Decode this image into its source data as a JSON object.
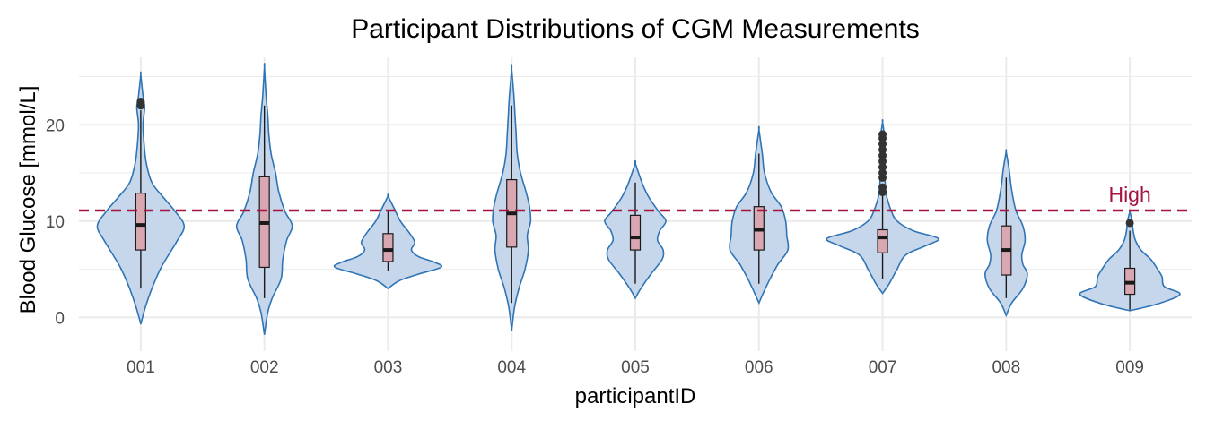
{
  "chart_data": {
    "type": "violin",
    "title": "Participant Distributions of CGM Measurements",
    "xlabel": "participantID",
    "ylabel": "Blood Glucose [mmol/L]",
    "categories": [
      "001",
      "002",
      "003",
      "004",
      "005",
      "006",
      "007",
      "008",
      "009"
    ],
    "ylim": [
      -3.5,
      27
    ],
    "yticks": [
      0,
      10,
      20
    ],
    "grid": true,
    "colors": {
      "violin_fill": "#c6d7ec",
      "violin_stroke": "#2f74b5",
      "box_fill": "#d9a7b2",
      "reference": "#a5143f",
      "grid": "#ebebeb",
      "outlier": "#333333"
    },
    "reference_line": {
      "value": 11.1,
      "label": "High",
      "style": "dashed"
    },
    "distributions": [
      {
        "participant": "001",
        "min_extent": -0.7,
        "max_extent": 25.2,
        "whisker_low": 3.0,
        "q1": 7.0,
        "median": 9.6,
        "q3": 12.9,
        "whisker_high": 21.5,
        "outliers": [
          22.0,
          22.4
        ],
        "density": [
          [
            -0.7,
            0
          ],
          [
            1,
            0.08
          ],
          [
            3,
            0.2
          ],
          [
            5,
            0.35
          ],
          [
            6.5,
            0.5
          ],
          [
            8,
            0.66
          ],
          [
            9.5,
            0.78
          ],
          [
            11,
            0.62
          ],
          [
            12.5,
            0.4
          ],
          [
            14,
            0.2
          ],
          [
            16,
            0.1
          ],
          [
            18,
            0.06
          ],
          [
            20,
            0.04
          ],
          [
            21.8,
            0.07
          ],
          [
            23,
            0.04
          ],
          [
            25.2,
            0
          ]
        ]
      },
      {
        "participant": "002",
        "min_extent": -1.8,
        "max_extent": 26.0,
        "whisker_low": 2.0,
        "q1": 5.2,
        "median": 9.8,
        "q3": 14.6,
        "whisker_high": 22.0,
        "density": [
          [
            -1.8,
            0
          ],
          [
            0.5,
            0.06
          ],
          [
            2,
            0.14
          ],
          [
            4,
            0.3
          ],
          [
            6,
            0.33
          ],
          [
            8,
            0.4
          ],
          [
            9.5,
            0.5
          ],
          [
            11,
            0.37
          ],
          [
            13,
            0.26
          ],
          [
            15,
            0.2
          ],
          [
            17,
            0.12
          ],
          [
            19,
            0.08
          ],
          [
            21,
            0.06
          ],
          [
            23,
            0.03
          ],
          [
            26,
            0
          ]
        ]
      },
      {
        "participant": "003",
        "min_extent": 3.0,
        "max_extent": 12.6,
        "whisker_low": 4.8,
        "q1": 5.8,
        "median": 7.0,
        "q3": 8.7,
        "whisker_high": 11.0,
        "density": [
          [
            3,
            0
          ],
          [
            3.8,
            0.2
          ],
          [
            4.5,
            0.55
          ],
          [
            5.2,
            0.95
          ],
          [
            5.7,
            0.85
          ],
          [
            6.3,
            0.55
          ],
          [
            7,
            0.42
          ],
          [
            7.8,
            0.48
          ],
          [
            8.8,
            0.38
          ],
          [
            10,
            0.22
          ],
          [
            11.2,
            0.12
          ],
          [
            12.6,
            0
          ]
        ]
      },
      {
        "participant": "004",
        "min_extent": -1.4,
        "max_extent": 25.8,
        "whisker_low": 1.5,
        "q1": 7.3,
        "median": 10.8,
        "q3": 14.3,
        "whisker_high": 22.0,
        "density": [
          [
            -1.4,
            0
          ],
          [
            1,
            0.05
          ],
          [
            3,
            0.13
          ],
          [
            5,
            0.24
          ],
          [
            7,
            0.3
          ],
          [
            8.5,
            0.28
          ],
          [
            10,
            0.34
          ],
          [
            11.5,
            0.32
          ],
          [
            13,
            0.26
          ],
          [
            15,
            0.16
          ],
          [
            17,
            0.1
          ],
          [
            19,
            0.08
          ],
          [
            21,
            0.06
          ],
          [
            23,
            0.04
          ],
          [
            25.8,
            0
          ]
        ]
      },
      {
        "participant": "005",
        "min_extent": 2.0,
        "max_extent": 16.0,
        "whisker_low": 3.5,
        "q1": 7.0,
        "median": 8.3,
        "q3": 10.6,
        "whisker_high": 14.0,
        "density": [
          [
            2,
            0
          ],
          [
            3,
            0.1
          ],
          [
            4.5,
            0.28
          ],
          [
            6,
            0.48
          ],
          [
            7,
            0.5
          ],
          [
            8,
            0.4
          ],
          [
            9,
            0.44
          ],
          [
            10,
            0.55
          ],
          [
            11,
            0.42
          ],
          [
            12.5,
            0.24
          ],
          [
            14,
            0.12
          ],
          [
            16,
            0
          ]
        ]
      },
      {
        "participant": "006",
        "min_extent": 1.5,
        "max_extent": 19.5,
        "whisker_low": 3.5,
        "q1": 7.0,
        "median": 9.1,
        "q3": 11.5,
        "whisker_high": 17.0,
        "density": [
          [
            1.5,
            0
          ],
          [
            2.8,
            0.1
          ],
          [
            4,
            0.2
          ],
          [
            5.5,
            0.34
          ],
          [
            7,
            0.52
          ],
          [
            8.5,
            0.5
          ],
          [
            10,
            0.48
          ],
          [
            11.5,
            0.4
          ],
          [
            13,
            0.22
          ],
          [
            15,
            0.1
          ],
          [
            17,
            0.06
          ],
          [
            19.5,
            0
          ]
        ]
      },
      {
        "participant": "007",
        "min_extent": 2.5,
        "max_extent": 20.3,
        "whisker_low": 4.0,
        "q1": 6.7,
        "median": 8.3,
        "q3": 9.1,
        "whisker_high": 12.7,
        "outliers": [
          13.0,
          13.5,
          14.5,
          15.0,
          15.6,
          16.2,
          16.8,
          17.4,
          18.0,
          18.6,
          19.0
        ],
        "density": [
          [
            2.5,
            0
          ],
          [
            3.5,
            0.12
          ],
          [
            5,
            0.26
          ],
          [
            6.5,
            0.42
          ],
          [
            7.5,
            0.8
          ],
          [
            8.2,
            1.0
          ],
          [
            9,
            0.55
          ],
          [
            10,
            0.26
          ],
          [
            11,
            0.16
          ],
          [
            12,
            0.1
          ],
          [
            13,
            0.06
          ],
          [
            15,
            0.04
          ],
          [
            17,
            0.04
          ],
          [
            18.5,
            0.04
          ],
          [
            20.3,
            0
          ]
        ]
      },
      {
        "participant": "008",
        "min_extent": 0.2,
        "max_extent": 17.2,
        "whisker_low": 2.0,
        "q1": 4.4,
        "median": 7.0,
        "q3": 9.5,
        "whisker_high": 14.5,
        "density": [
          [
            0.2,
            0
          ],
          [
            1.5,
            0.1
          ],
          [
            3,
            0.3
          ],
          [
            4.5,
            0.38
          ],
          [
            5.5,
            0.3
          ],
          [
            6.5,
            0.28
          ],
          [
            8,
            0.34
          ],
          [
            9.5,
            0.3
          ],
          [
            11,
            0.18
          ],
          [
            12.5,
            0.12
          ],
          [
            14,
            0.08
          ],
          [
            15.5,
            0.05
          ],
          [
            17.2,
            0
          ]
        ]
      },
      {
        "participant": "009",
        "min_extent": 0.7,
        "max_extent": 11.0,
        "whisker_low": 0.8,
        "q1": 2.4,
        "median": 3.6,
        "q3": 5.1,
        "whisker_high": 9.0,
        "outliers": [
          9.8
        ],
        "density": [
          [
            0.7,
            0
          ],
          [
            1.4,
            0.5
          ],
          [
            2.4,
            0.9
          ],
          [
            3.2,
            0.62
          ],
          [
            4.2,
            0.58
          ],
          [
            5,
            0.5
          ],
          [
            6,
            0.38
          ],
          [
            7,
            0.2
          ],
          [
            8,
            0.1
          ],
          [
            9,
            0.06
          ],
          [
            10,
            0.04
          ],
          [
            11,
            0
          ]
        ]
      }
    ]
  }
}
